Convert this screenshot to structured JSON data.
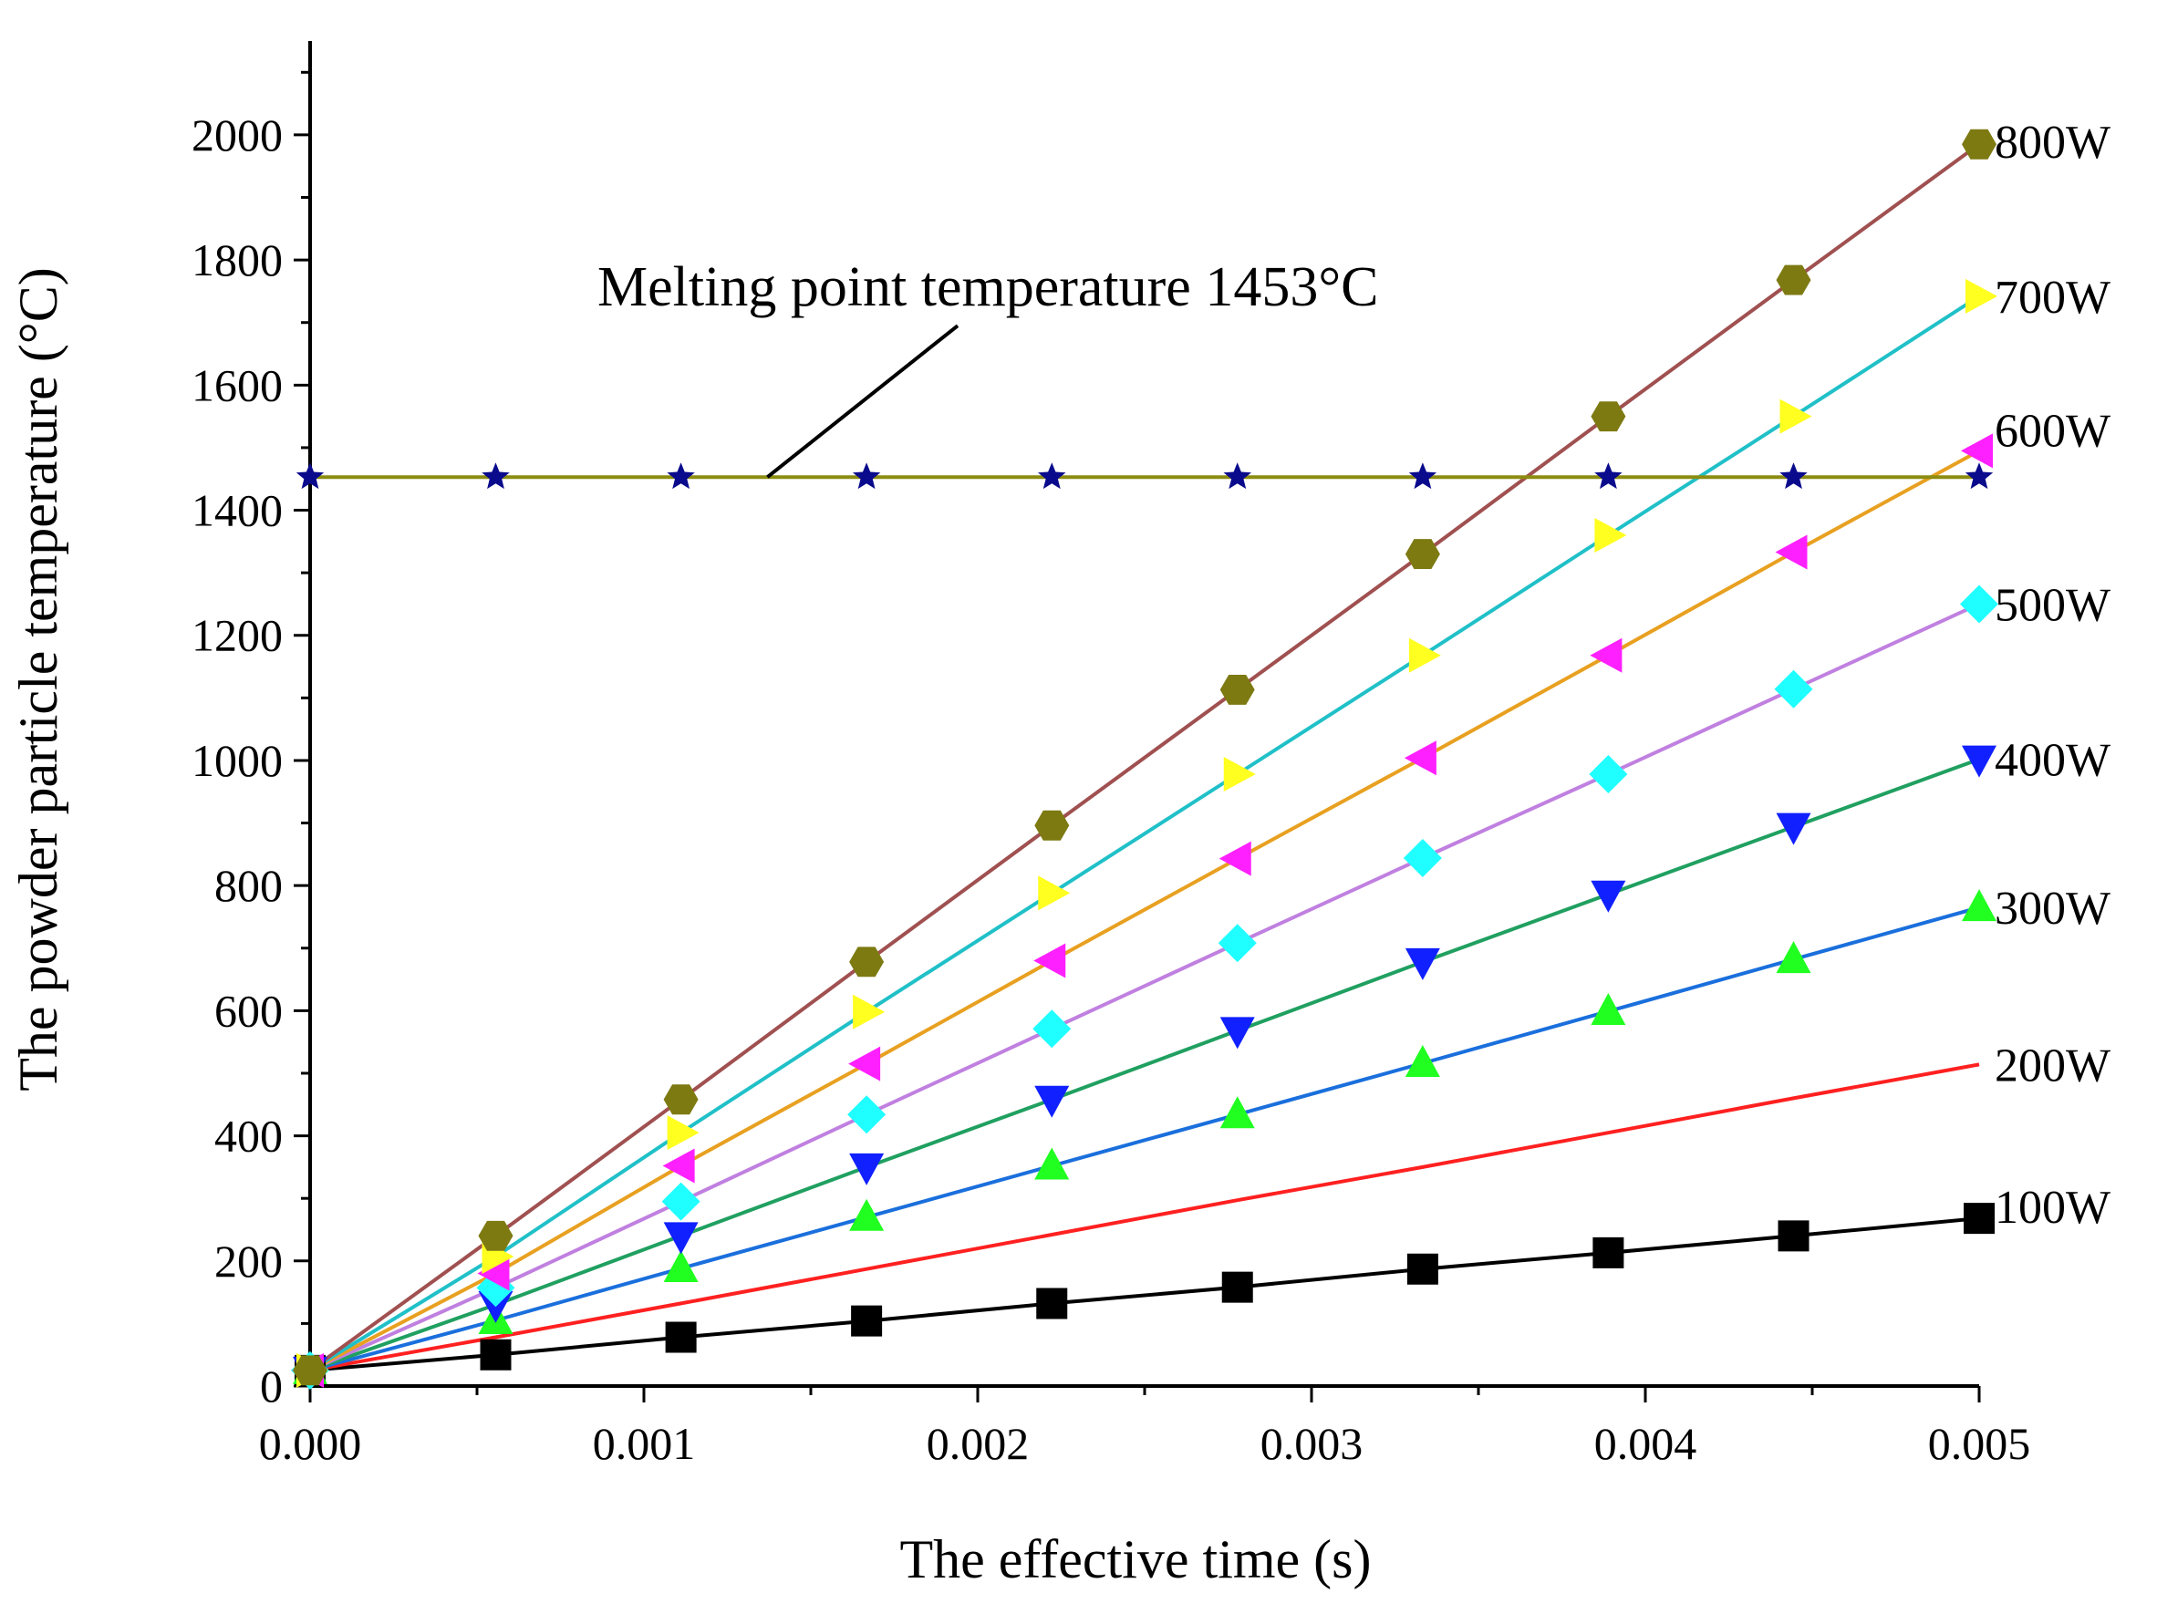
{
  "chart_data": {
    "type": "line",
    "title": "",
    "xlabel": "The effective time (s)",
    "ylabel": "The powder particle temperature (°C)",
    "xlim": [
      0,
      0.005
    ],
    "ylim": [
      0,
      2150
    ],
    "x_ticks": [
      "0.000",
      "0.001",
      "0.002",
      "0.003",
      "0.004",
      "0.005"
    ],
    "y_ticks": [
      "0",
      "200",
      "400",
      "600",
      "800",
      "1000",
      "1200",
      "1400",
      "1600",
      "1800",
      "2000"
    ],
    "x": [
      0,
      0.000556,
      0.001111,
      0.001667,
      0.002222,
      0.002778,
      0.003333,
      0.003889,
      0.004444,
      0.005
    ],
    "series": [
      {
        "name": "100W",
        "color": "#000000",
        "marker": "square",
        "values": [
          25,
          50,
          78,
          104,
          132,
          158,
          187,
          213,
          240,
          268
        ]
      },
      {
        "name": "200W",
        "color": "#ff2020",
        "marker": "circle",
        "values": [
          25,
          78,
          132,
          187,
          242,
          297,
          350,
          405,
          460,
          514
        ]
      },
      {
        "name": "300W",
        "color": "#1a6fdc",
        "marker": "triangle-up",
        "values": [
          25,
          105,
          188,
          270,
          352,
          434,
          516,
          599,
          682,
          765
        ]
      },
      {
        "name": "400W",
        "color": "#20a060",
        "marker": "triangle-down",
        "values": [
          25,
          130,
          240,
          350,
          458,
          568,
          678,
          786,
          894,
          1002
        ]
      },
      {
        "name": "500W",
        "color": "#c080e0",
        "marker": "diamond",
        "values": [
          25,
          157,
          295,
          434,
          571,
          708,
          844,
          978,
          1114,
          1250
        ]
      },
      {
        "name": "600W",
        "color": "#e8a020",
        "marker": "triangle-left",
        "values": [
          25,
          180,
          352,
          515,
          680,
          843,
          1004,
          1168,
          1333,
          1495
        ]
      },
      {
        "name": "700W",
        "color": "#20c0c8",
        "marker": "triangle-right",
        "values": [
          25,
          207,
          405,
          598,
          788,
          978,
          1168,
          1360,
          1550,
          1742
        ]
      },
      {
        "name": "800W",
        "color": "#a05050",
        "marker": "hexagon",
        "values": [
          25,
          240,
          458,
          678,
          896,
          1113,
          1330,
          1550,
          1768,
          1985
        ]
      },
      {
        "name": "Melting point",
        "color": "#8c8c10",
        "marker": "star",
        "values": [
          1453,
          1453,
          1453,
          1453,
          1453,
          1453,
          1453,
          1453,
          1453,
          1453
        ]
      }
    ],
    "annotation": "Melting point temperature 1453°C",
    "colors": {
      "marker_fill_800": "#7d7a12",
      "marker_fill_700": "#ffff20",
      "marker_fill_600": "#ff20ff",
      "marker_fill_500": "#20ffff",
      "marker_fill_400": "#1020ff",
      "marker_fill_300": "#20ff20",
      "marker_fill_200": "#ff1a1a",
      "marker_fill_100": "#000000",
      "marker_fill_melting": "#0a0a8c"
    }
  }
}
